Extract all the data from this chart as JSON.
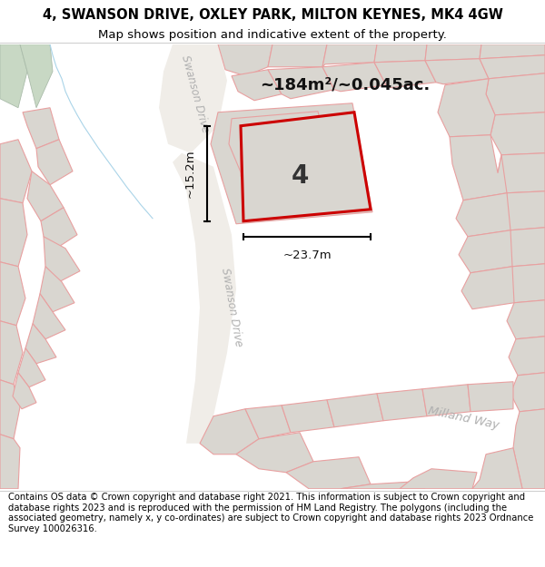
{
  "title_line1": "4, SWANSON DRIVE, OXLEY PARK, MILTON KEYNES, MK4 4GW",
  "title_line2": "Map shows position and indicative extent of the property.",
  "footer_text": "Contains OS data © Crown copyright and database right 2021. This information is subject to Crown copyright and database rights 2023 and is reproduced with the permission of HM Land Registry. The polygons (including the associated geometry, namely x, y co-ordinates) are subject to Crown copyright and database rights 2023 Ordnance Survey 100026316.",
  "area_text": "~184m²/~0.045ac.",
  "number_label": "4",
  "dim_width": "~23.7m",
  "dim_height": "~15.2m",
  "bg_color": "#f8f7f5",
  "plot_fill": "#d9d6d0",
  "plot_outline": "#e8a0a0",
  "highlight_outline": "#cc0000",
  "road_label_color": "#aaaaaa",
  "green_fill": "#c5d9c5",
  "blue_line_color": "#aad4e8",
  "title_fontsize": 10.5,
  "subtitle_fontsize": 9.5,
  "footer_fontsize": 7.2
}
